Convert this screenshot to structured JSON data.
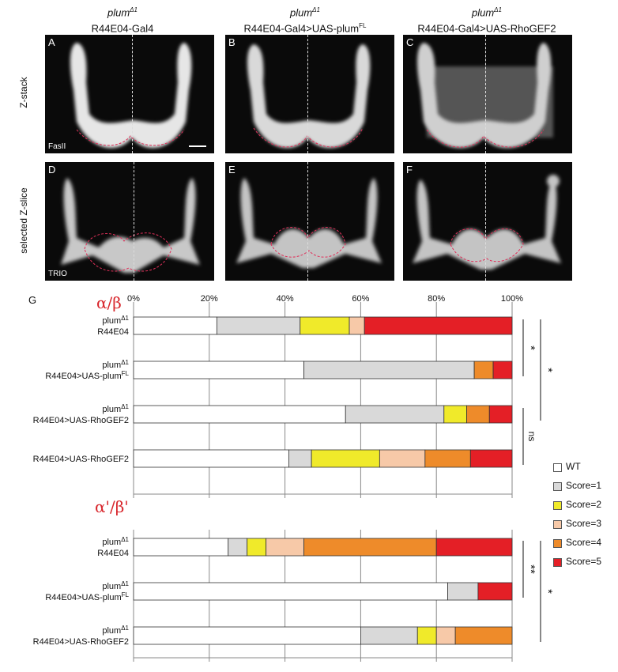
{
  "columns": [
    {
      "genotype": "plum",
      "superscript": "Δ1",
      "driver": "R44E04-Gal4",
      "driver_sup": ""
    },
    {
      "genotype": "plum",
      "superscript": "Δ1",
      "driver": "R44E04-Gal4>UAS-plum",
      "driver_sup": "FL"
    },
    {
      "genotype": "plum",
      "superscript": "Δ1",
      "driver": "R44E04-Gal4>UAS-RhoGEF2",
      "driver_sup": ""
    }
  ],
  "row_labels": {
    "top": "Z-stack",
    "bottom": "selected Z-slice"
  },
  "panels": {
    "top": [
      {
        "label": "A",
        "stain": "FasII"
      },
      {
        "label": "B",
        "stain": ""
      },
      {
        "label": "C",
        "stain": ""
      }
    ],
    "bottom": [
      {
        "label": "D",
        "stain": "TRIO"
      },
      {
        "label": "E",
        "stain": ""
      },
      {
        "label": "F",
        "stain": ""
      }
    ]
  },
  "panel_G_label": "G",
  "chart_data": {
    "type": "bar",
    "orientation": "horizontal-stacked-100",
    "x_ticks": [
      "0%",
      "20%",
      "40%",
      "60%",
      "80%",
      "100%"
    ],
    "xlim": [
      0,
      100
    ],
    "grid": true,
    "legend_position": "right",
    "categories_legend": [
      "WT",
      "Score=1",
      "Score=2",
      "Score=3",
      "Score=4",
      "Score=5"
    ],
    "colors": {
      "WT": "#ffffff",
      "Score=1": "#d9d9d9",
      "Score=2": "#f0ea2a",
      "Score=3": "#f7c9a8",
      "Score=4": "#ee8b2a",
      "Score=5": "#e41f26"
    },
    "groups": [
      {
        "title": "α/β",
        "rows": [
          {
            "line1": "plum",
            "line1_sup": "Δ1",
            "line2": "R44E04",
            "line2_sup": "",
            "values": [
              22,
              22,
              13,
              4,
              0,
              39
            ]
          },
          {
            "line1": "plum",
            "line1_sup": "Δ1",
            "line2": "R44E04>UAS-plum",
            "line2_sup": "FL",
            "values": [
              45,
              45,
              0,
              0,
              5,
              5
            ]
          },
          {
            "line1": "plum",
            "line1_sup": "Δ1",
            "line2": "R44E04>UAS-RhoGEF2",
            "line2_sup": "",
            "values": [
              56,
              26,
              6,
              0,
              6,
              6
            ]
          },
          {
            "line1": "",
            "line1_sup": "",
            "line2": "R44E04>UAS-RhoGEF2",
            "line2_sup": "",
            "values": [
              41,
              6,
              18,
              12,
              12,
              11
            ]
          }
        ],
        "significance": [
          {
            "from": 0,
            "to": 1,
            "text": "*"
          },
          {
            "from": 0,
            "to": 2,
            "text": "*"
          },
          {
            "from": 2,
            "to": 3,
            "text": "ns"
          }
        ]
      },
      {
        "title": "α'/β'",
        "rows": [
          {
            "line1": "plum",
            "line1_sup": "Δ1",
            "line2": "R44E04",
            "line2_sup": "",
            "values": [
              25,
              5,
              5,
              10,
              35,
              20
            ]
          },
          {
            "line1": "plum",
            "line1_sup": "Δ1",
            "line2": "R44E04>UAS-plum",
            "line2_sup": "FL",
            "values": [
              83,
              8,
              0,
              0,
              0,
              9
            ]
          },
          {
            "line1": "plum",
            "line1_sup": "Δ1",
            "line2": "R44E04>UAS-RhoGEF2",
            "line2_sup": "",
            "values": [
              60,
              15,
              5,
              5,
              15,
              0
            ]
          }
        ],
        "significance": [
          {
            "from": 0,
            "to": 1,
            "text": "**"
          },
          {
            "from": 0,
            "to": 2,
            "text": "*"
          }
        ]
      }
    ]
  }
}
